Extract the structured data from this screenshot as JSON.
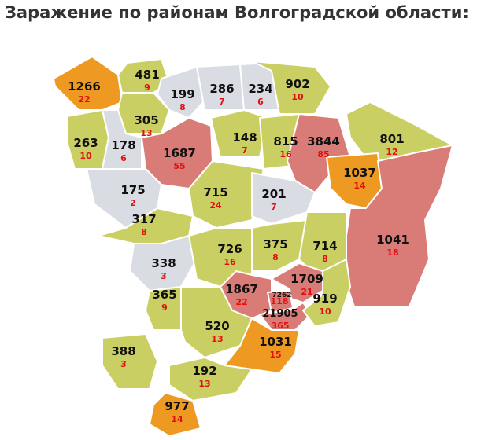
{
  "title": "Заражение по районам Волгоградской области:",
  "regions": [
    {
      "cases": 1266,
      "deaths": 22,
      "color": "#ee9a22"
    },
    {
      "cases": 481,
      "deaths": 9,
      "color": "#c9cf62"
    },
    {
      "cases": 199,
      "deaths": 8,
      "color": "#d9dde3"
    },
    {
      "cases": 286,
      "deaths": 7,
      "color": "#d9dde3"
    },
    {
      "cases": 234,
      "deaths": 6,
      "color": "#d9dde3"
    },
    {
      "cases": 902,
      "deaths": 10,
      "color": "#c9cf62"
    },
    {
      "cases": 305,
      "deaths": 13,
      "color": "#c9cf62"
    },
    {
      "cases": 263,
      "deaths": 10,
      "color": "#c9cf62"
    },
    {
      "cases": 178,
      "deaths": 6,
      "color": "#d9dde3"
    },
    {
      "cases": 1687,
      "deaths": 55,
      "color": "#d97b76"
    },
    {
      "cases": 148,
      "deaths": 7,
      "color": "#c9cf62"
    },
    {
      "cases": 815,
      "deaths": 16,
      "color": "#c9cf62"
    },
    {
      "cases": 3844,
      "deaths": 85,
      "color": "#d97b76"
    },
    {
      "cases": 801,
      "deaths": 12,
      "color": "#c9cf62"
    },
    {
      "cases": 1037,
      "deaths": 14,
      "color": "#ee9a22"
    },
    {
      "cases": 175,
      "deaths": 2,
      "color": "#d9dde3"
    },
    {
      "cases": 715,
      "deaths": 24,
      "color": "#c9cf62"
    },
    {
      "cases": 201,
      "deaths": 7,
      "color": "#d9dde3"
    },
    {
      "cases": 1041,
      "deaths": 18,
      "color": "#d97b76"
    },
    {
      "cases": 317,
      "deaths": 8,
      "color": "#c9cf62"
    },
    {
      "cases": 338,
      "deaths": 3,
      "color": "#d9dde3"
    },
    {
      "cases": 726,
      "deaths": 16,
      "color": "#c9cf62"
    },
    {
      "cases": 375,
      "deaths": 8,
      "color": "#c9cf62"
    },
    {
      "cases": 714,
      "deaths": 8,
      "color": "#c9cf62"
    },
    {
      "cases": 1867,
      "deaths": 22,
      "color": "#d97b76"
    },
    {
      "cases": 7262,
      "deaths": 118,
      "color": "#d97b76"
    },
    {
      "cases": 1709,
      "deaths": 21,
      "color": "#d97b76"
    },
    {
      "cases": 21905,
      "deaths": 365,
      "color": "#d97b76"
    },
    {
      "cases": 919,
      "deaths": 10,
      "color": "#c9cf62"
    },
    {
      "cases": 365,
      "deaths": 9,
      "color": "#c9cf62"
    },
    {
      "cases": 520,
      "deaths": 13,
      "color": "#c9cf62"
    },
    {
      "cases": 1031,
      "deaths": 15,
      "color": "#ee9a22"
    },
    {
      "cases": 388,
      "deaths": 3,
      "color": "#c9cf62"
    },
    {
      "cases": 192,
      "deaths": 13,
      "color": "#c9cf62"
    },
    {
      "cases": 977,
      "deaths": 14,
      "color": "#ee9a22"
    }
  ]
}
